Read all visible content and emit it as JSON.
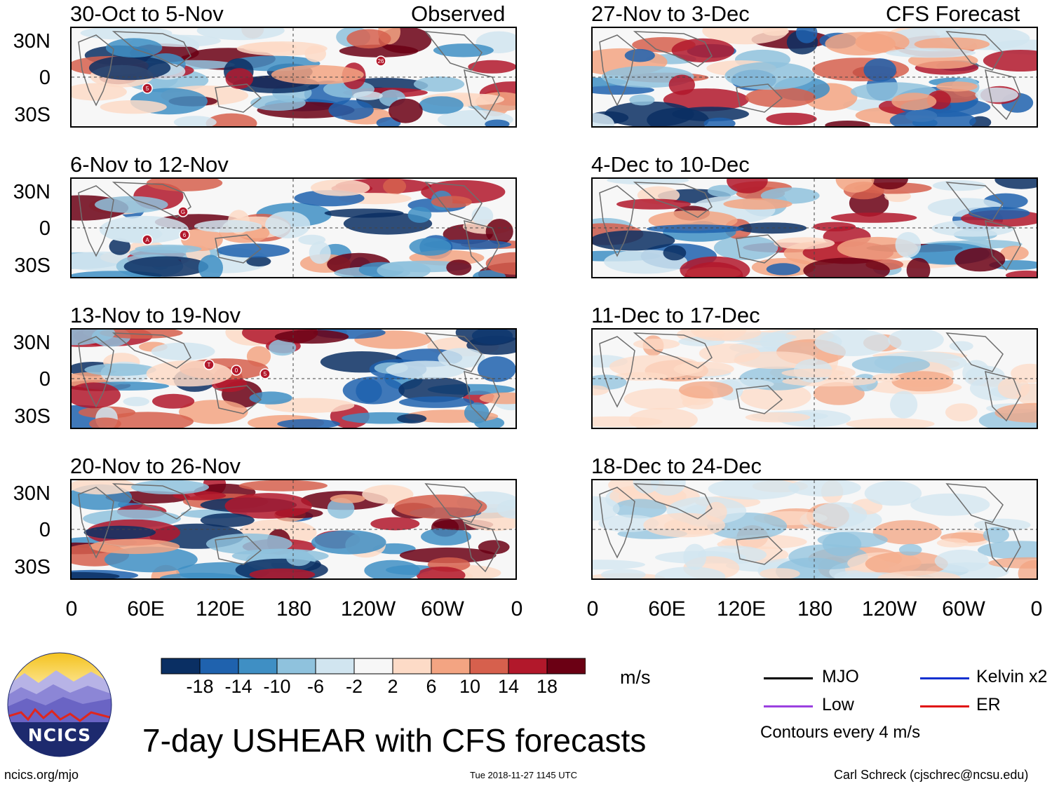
{
  "header": {
    "left_label": "Observed",
    "right_label": "CFS Forecast"
  },
  "panels": {
    "observed": [
      {
        "title": "30-Oct to 5-Nov"
      },
      {
        "title": "6-Nov to 12-Nov"
      },
      {
        "title": "13-Nov to 19-Nov"
      },
      {
        "title": "20-Nov to 26-Nov"
      }
    ],
    "forecast": [
      {
        "title": "27-Nov to 3-Dec"
      },
      {
        "title": "4-Dec to 10-Dec"
      },
      {
        "title": "11-Dec to 17-Dec"
      },
      {
        "title": "18-Dec to 24-Dec"
      }
    ]
  },
  "axes": {
    "y_labels": [
      "30N",
      "0",
      "30S"
    ],
    "x_labels": [
      "0",
      "60E",
      "120E",
      "180",
      "120W",
      "60W",
      "0"
    ]
  },
  "colorbar": {
    "unit": "m/s",
    "ticks": [
      "-18",
      "-14",
      "-10",
      "-6",
      "-2",
      "2",
      "6",
      "10",
      "14",
      "18"
    ],
    "colors": [
      "#0a2f63",
      "#1f62ae",
      "#3f8fc4",
      "#8fc2dd",
      "#d1e5f0",
      "#f7f7f7",
      "#fddbc7",
      "#f3a482",
      "#d6604d",
      "#b2182b",
      "#6b0014"
    ]
  },
  "legend": {
    "items": [
      {
        "label": "MJO",
        "color": "#000000"
      },
      {
        "label": "Kelvin x2",
        "color": "#1030d0"
      },
      {
        "label": "Low",
        "color": "#9b40e0"
      },
      {
        "label": "ER",
        "color": "#e01010"
      }
    ],
    "contours_note": "Contours every 4 m/s"
  },
  "logo": {
    "text": "NCICS"
  },
  "main_title": "7-day USHEAR with CFS forecasts",
  "footer": {
    "url": "ncics.org/mjo",
    "timestamp": "Tue 2018-11-27 1145 UTC",
    "author": "Carl Schreck (cjschrec@ncsu.edu)"
  },
  "storm_markers": {
    "observed_0": [
      "5",
      "26"
    ],
    "observed_1": [
      "G",
      "A",
      "6"
    ],
    "observed_2": [
      "T",
      "0",
      "5"
    ]
  }
}
